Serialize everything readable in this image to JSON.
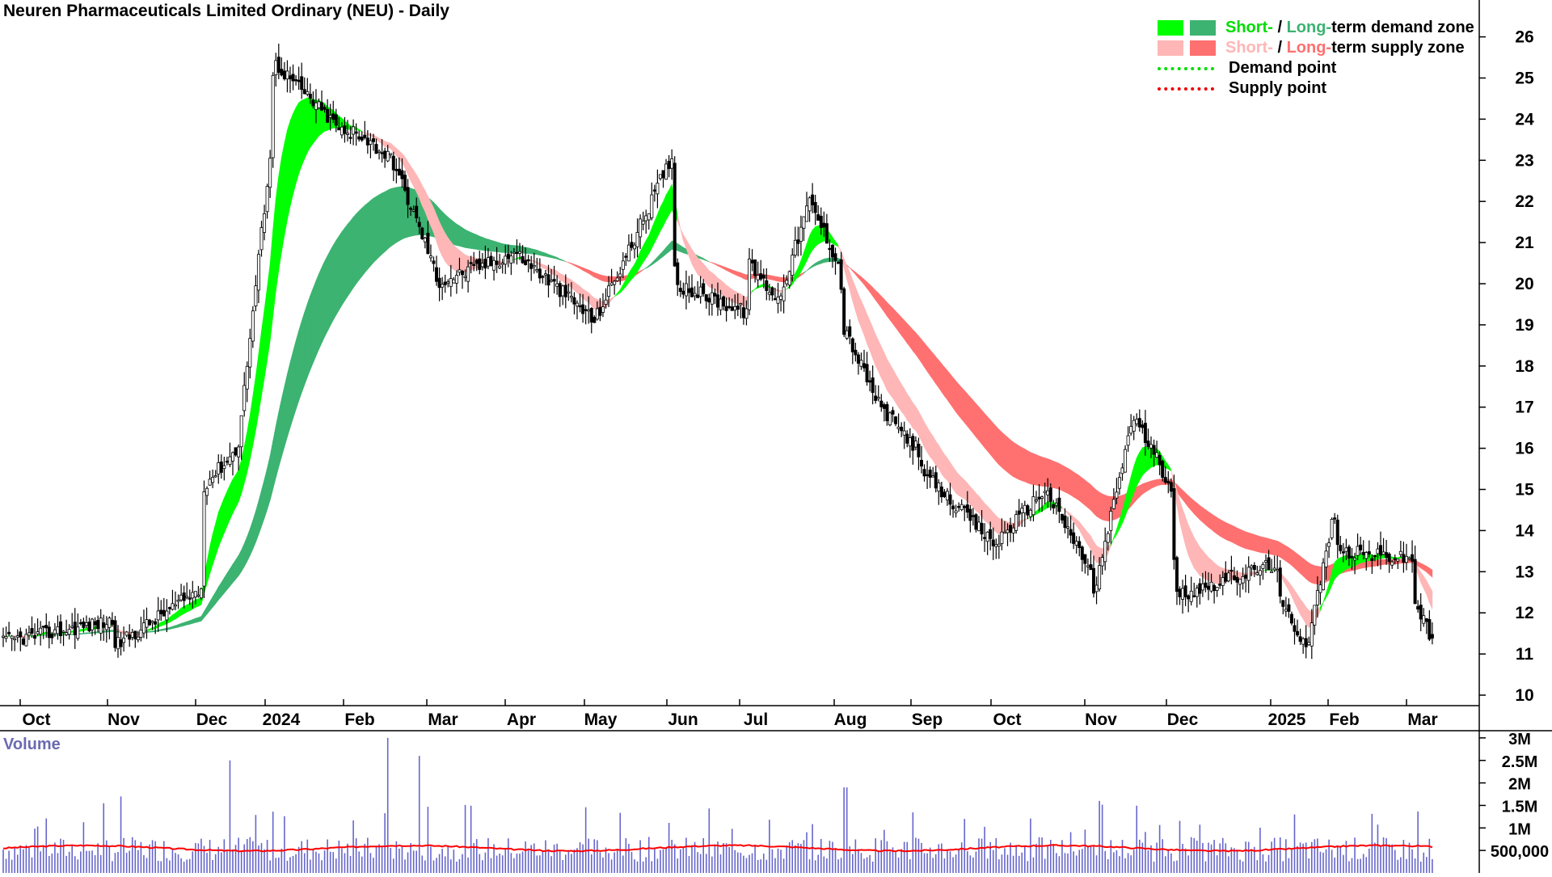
{
  "title": "Neuren Pharmaceuticals Limited Ordinary (NEU) - Daily",
  "legend": {
    "row1": {
      "short": "Short-",
      "sep": " / ",
      "long": "Long-",
      "rest": "term demand zone"
    },
    "row2": {
      "short": "Short-",
      "sep": " / ",
      "long": "Long-",
      "rest": "term supply zone"
    },
    "row3": "Demand point",
    "row4": "Supply point"
  },
  "colors": {
    "short_demand": "#00ff00",
    "long_demand": "#3cb371",
    "short_supply": "#ffb6b6",
    "long_supply": "#ff7070",
    "short_supply_mix": "#ff7f3f",
    "candle": "#000000",
    "volume_bar": "#6666cc",
    "volume_ma": "#ff0000",
    "volume_label": "#6a6ab0"
  },
  "chart_data": [
    {
      "type": "candlestick",
      "title": "Neuren Pharmaceuticals Limited Ordinary (NEU) - Daily",
      "x_tick_labels": [
        "Oct",
        "Nov",
        "Dec",
        "2024",
        "Feb",
        "Mar",
        "Apr",
        "May",
        "Jun",
        "Jul",
        "Aug",
        "Sep",
        "Oct",
        "Nov",
        "Dec",
        "2025",
        "Feb",
        "Mar"
      ],
      "y_tick_labels": [
        "10",
        "11",
        "12",
        "13",
        "14",
        "15",
        "16",
        "17",
        "18",
        "19",
        "20",
        "21",
        "22",
        "23",
        "24",
        "25",
        "26"
      ],
      "ylim": [
        9.7,
        26.3
      ],
      "grid": false,
      "legend_position": "top-right",
      "price_path": [
        {
          "t": "Oct",
          "v": 11.3
        },
        {
          "t": "Oct",
          "v": 11.8
        },
        {
          "t": "Nov",
          "v": 11.2
        },
        {
          "t": "Nov",
          "v": 12.6
        },
        {
          "t": "Dec",
          "v": 15.1
        },
        {
          "t": "Dec",
          "v": 16.0
        },
        {
          "t": "Dec",
          "v": 23.5
        },
        {
          "t": "2024",
          "v": 25.4
        },
        {
          "t": "2024",
          "v": 23.5
        },
        {
          "t": "Feb",
          "v": 23.8
        },
        {
          "t": "Feb",
          "v": 23.0
        },
        {
          "t": "Feb",
          "v": 20.5
        },
        {
          "t": "Mar",
          "v": 20.0
        },
        {
          "t": "Mar",
          "v": 20.7
        },
        {
          "t": "Apr",
          "v": 20.8
        },
        {
          "t": "Apr",
          "v": 19.2
        },
        {
          "t": "May",
          "v": 19.0
        },
        {
          "t": "May",
          "v": 21.0
        },
        {
          "t": "May",
          "v": 23.2
        },
        {
          "t": "Jun",
          "v": 20.0
        },
        {
          "t": "Jun",
          "v": 19.3
        },
        {
          "t": "Jul",
          "v": 20.5
        },
        {
          "t": "Jul",
          "v": 19.6
        },
        {
          "t": "Jul",
          "v": 22.0
        },
        {
          "t": "Jul",
          "v": 20.4
        },
        {
          "t": "Aug",
          "v": 19.0
        },
        {
          "t": "Aug",
          "v": 17.0
        },
        {
          "t": "Aug",
          "v": 16.0
        },
        {
          "t": "Sep",
          "v": 15.5
        },
        {
          "t": "Sep",
          "v": 13.6
        },
        {
          "t": "Oct",
          "v": 13.8
        },
        {
          "t": "Oct",
          "v": 15.0
        },
        {
          "t": "Oct",
          "v": 13.0
        },
        {
          "t": "Nov",
          "v": 12.3
        },
        {
          "t": "Nov",
          "v": 16.8
        },
        {
          "t": "Nov",
          "v": 15.0
        },
        {
          "t": "Dec",
          "v": 12.4
        },
        {
          "t": "Dec",
          "v": 13.2
        },
        {
          "t": "2025",
          "v": 12.3
        },
        {
          "t": "2025",
          "v": 11.2
        },
        {
          "t": "2025",
          "v": 14.5
        },
        {
          "t": "Feb",
          "v": 13.5
        },
        {
          "t": "Feb",
          "v": 13.3
        },
        {
          "t": "Mar",
          "v": 12.3
        },
        {
          "t": "Mar",
          "v": 11.2
        }
      ]
    },
    {
      "type": "bar",
      "title": "Volume",
      "y_tick_labels": [
        "3M",
        "2.5M",
        "2M",
        "1.5M",
        "1M",
        "500,000"
      ],
      "ylim": [
        0,
        3200000
      ],
      "moving_average_level": 550000
    }
  ]
}
